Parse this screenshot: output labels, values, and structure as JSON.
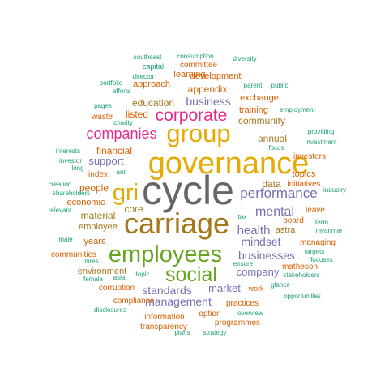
{
  "colors": {
    "gray": "#666666",
    "gold": "#e6ab02",
    "brown": "#a6761d",
    "green": "#66a61e",
    "pink": "#e7298a",
    "purple": "#7570b3",
    "orange": "#d95f02",
    "teal": "#1b9e77"
  },
  "words": [
    {
      "text": "cycle",
      "color": "gray"
    },
    {
      "text": "governance",
      "color": "gold"
    },
    {
      "text": "carriage",
      "color": "brown"
    },
    {
      "text": "group",
      "color": "gold"
    },
    {
      "text": "employees",
      "color": "green"
    },
    {
      "text": "social",
      "color": "green"
    },
    {
      "text": "gri",
      "color": "gold"
    },
    {
      "text": "corporate",
      "color": "pink"
    },
    {
      "text": "companies",
      "color": "pink"
    },
    {
      "text": "performance",
      "color": "purple"
    },
    {
      "text": "mental",
      "color": "purple"
    },
    {
      "text": "health",
      "color": "purple"
    },
    {
      "text": "mindset",
      "color": "purple"
    },
    {
      "text": "businesses",
      "color": "purple"
    },
    {
      "text": "company",
      "color": "purple"
    },
    {
      "text": "standards",
      "color": "purple"
    },
    {
      "text": "management",
      "color": "purple"
    },
    {
      "text": "market",
      "color": "purple"
    },
    {
      "text": "business",
      "color": "purple"
    },
    {
      "text": "support",
      "color": "purple"
    },
    {
      "text": "education",
      "color": "brown"
    },
    {
      "text": "appendix",
      "color": "orange"
    },
    {
      "text": "community",
      "color": "brown"
    },
    {
      "text": "financial",
      "color": "orange"
    },
    {
      "text": "listed",
      "color": "orange"
    },
    {
      "text": "annual",
      "color": "brown"
    },
    {
      "text": "core",
      "color": "brown"
    },
    {
      "text": "data",
      "color": "brown"
    },
    {
      "text": "topics",
      "color": "orange"
    },
    {
      "text": "astra",
      "color": "brown"
    },
    {
      "text": "material",
      "color": "brown"
    },
    {
      "text": "people",
      "color": "orange"
    },
    {
      "text": "economic",
      "color": "orange"
    },
    {
      "text": "years",
      "color": "orange"
    },
    {
      "text": "employee",
      "color": "brown"
    },
    {
      "text": "environment",
      "color": "brown"
    },
    {
      "text": "training",
      "color": "orange"
    },
    {
      "text": "exchange",
      "color": "orange"
    },
    {
      "text": "development",
      "color": "orange"
    },
    {
      "text": "learning",
      "color": "orange"
    },
    {
      "text": "approach",
      "color": "orange"
    },
    {
      "text": "committee",
      "color": "orange"
    },
    {
      "text": "waste",
      "color": "orange"
    },
    {
      "text": "index",
      "color": "orange"
    },
    {
      "text": "investors",
      "color": "orange"
    },
    {
      "text": "initiatives",
      "color": "orange"
    },
    {
      "text": "board",
      "color": "orange"
    },
    {
      "text": "leave",
      "color": "orange"
    },
    {
      "text": "managing",
      "color": "orange"
    },
    {
      "text": "matheson",
      "color": "orange"
    },
    {
      "text": "communities",
      "color": "orange"
    },
    {
      "text": "corruption",
      "color": "orange"
    },
    {
      "text": "compliance",
      "color": "orange"
    },
    {
      "text": "information",
      "color": "orange"
    },
    {
      "text": "transparency",
      "color": "orange"
    },
    {
      "text": "practices",
      "color": "orange"
    },
    {
      "text": "programmes",
      "color": "orange"
    },
    {
      "text": "option",
      "color": "orange"
    },
    {
      "text": "work",
      "color": "orange"
    },
    {
      "text": "capital",
      "color": "teal"
    },
    {
      "text": "consumption",
      "color": "teal"
    },
    {
      "text": "southeast",
      "color": "teal"
    },
    {
      "text": "diversity",
      "color": "teal"
    },
    {
      "text": "director",
      "color": "teal"
    },
    {
      "text": "portfolio",
      "color": "teal"
    },
    {
      "text": "efforts",
      "color": "teal"
    },
    {
      "text": "parent",
      "color": "teal"
    },
    {
      "text": "public",
      "color": "teal"
    },
    {
      "text": "pages",
      "color": "teal"
    },
    {
      "text": "charity",
      "color": "teal"
    },
    {
      "text": "employment",
      "color": "teal"
    },
    {
      "text": "providing",
      "color": "teal"
    },
    {
      "text": "focus",
      "color": "teal"
    },
    {
      "text": "investment",
      "color": "teal"
    },
    {
      "text": "interests",
      "color": "teal"
    },
    {
      "text": "investor",
      "color": "teal"
    },
    {
      "text": "long",
      "color": "teal"
    },
    {
      "text": "anti",
      "color": "teal"
    },
    {
      "text": "creation",
      "color": "teal"
    },
    {
      "text": "shareholders",
      "color": "teal"
    },
    {
      "text": "industry",
      "color": "teal"
    },
    {
      "text": "relevant",
      "color": "teal"
    },
    {
      "text": "tax",
      "color": "teal"
    },
    {
      "text": "term",
      "color": "teal"
    },
    {
      "text": "myanmar",
      "color": "teal"
    },
    {
      "text": "male",
      "color": "teal"
    },
    {
      "text": "hires",
      "color": "teal"
    },
    {
      "text": "targets",
      "color": "teal"
    },
    {
      "text": "focuses",
      "color": "teal"
    },
    {
      "text": "ensure",
      "color": "teal"
    },
    {
      "text": "topic",
      "color": "teal"
    },
    {
      "text": "female",
      "color": "teal"
    },
    {
      "text": "asia",
      "color": "teal"
    },
    {
      "text": "stakeholders",
      "color": "teal"
    },
    {
      "text": "glance",
      "color": "teal"
    },
    {
      "text": "opportunities",
      "color": "teal"
    },
    {
      "text": "disclosures",
      "color": "teal"
    },
    {
      "text": "overview",
      "color": "teal"
    },
    {
      "text": "plans",
      "color": "teal"
    },
    {
      "text": "strategy",
      "color": "teal"
    }
  ]
}
